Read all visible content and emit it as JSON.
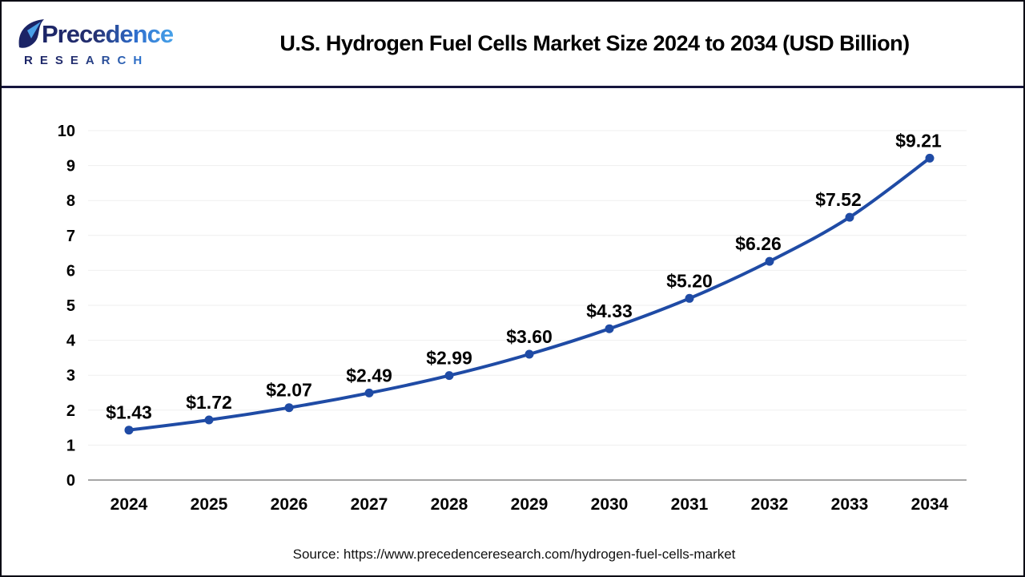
{
  "header": {
    "logo": {
      "name_line": "Precedence",
      "sub_line": "RESEARCH"
    },
    "title": "U.S. Hydrogen Fuel Cells Market Size 2024 to 2034 (USD Billion)"
  },
  "chart_data": {
    "type": "line",
    "title": "U.S. Hydrogen Fuel Cells Market Size 2024 to 2034 (USD Billion)",
    "categories": [
      "2024",
      "2025",
      "2026",
      "2027",
      "2028",
      "2029",
      "2030",
      "2031",
      "2032",
      "2033",
      "2034"
    ],
    "values": [
      1.43,
      1.72,
      2.07,
      2.49,
      2.99,
      3.6,
      4.33,
      5.2,
      6.26,
      7.52,
      9.21
    ],
    "data_labels": [
      "$1.43",
      "$1.72",
      "$2.07",
      "$2.49",
      "$2.99",
      "$3.60",
      "$4.33",
      "$5.20",
      "$6.26",
      "$7.52",
      "$9.21"
    ],
    "unit": "USD Billion",
    "xlabel": "",
    "ylabel": "",
    "ylim": [
      0,
      10
    ],
    "yticks": [
      0,
      1,
      2,
      3,
      4,
      5,
      6,
      7,
      8,
      9,
      10
    ],
    "grid": true,
    "legend": "none",
    "line_color": "#1f4ba5",
    "marker_color": "#1f4ba5",
    "gridline_color": "#efefef",
    "axis_line_color": "#a6a6a6",
    "label_color": "#000000"
  },
  "footer": {
    "source": "Source: https://www.precedenceresearch.com/hydrogen-fuel-cells-market"
  }
}
